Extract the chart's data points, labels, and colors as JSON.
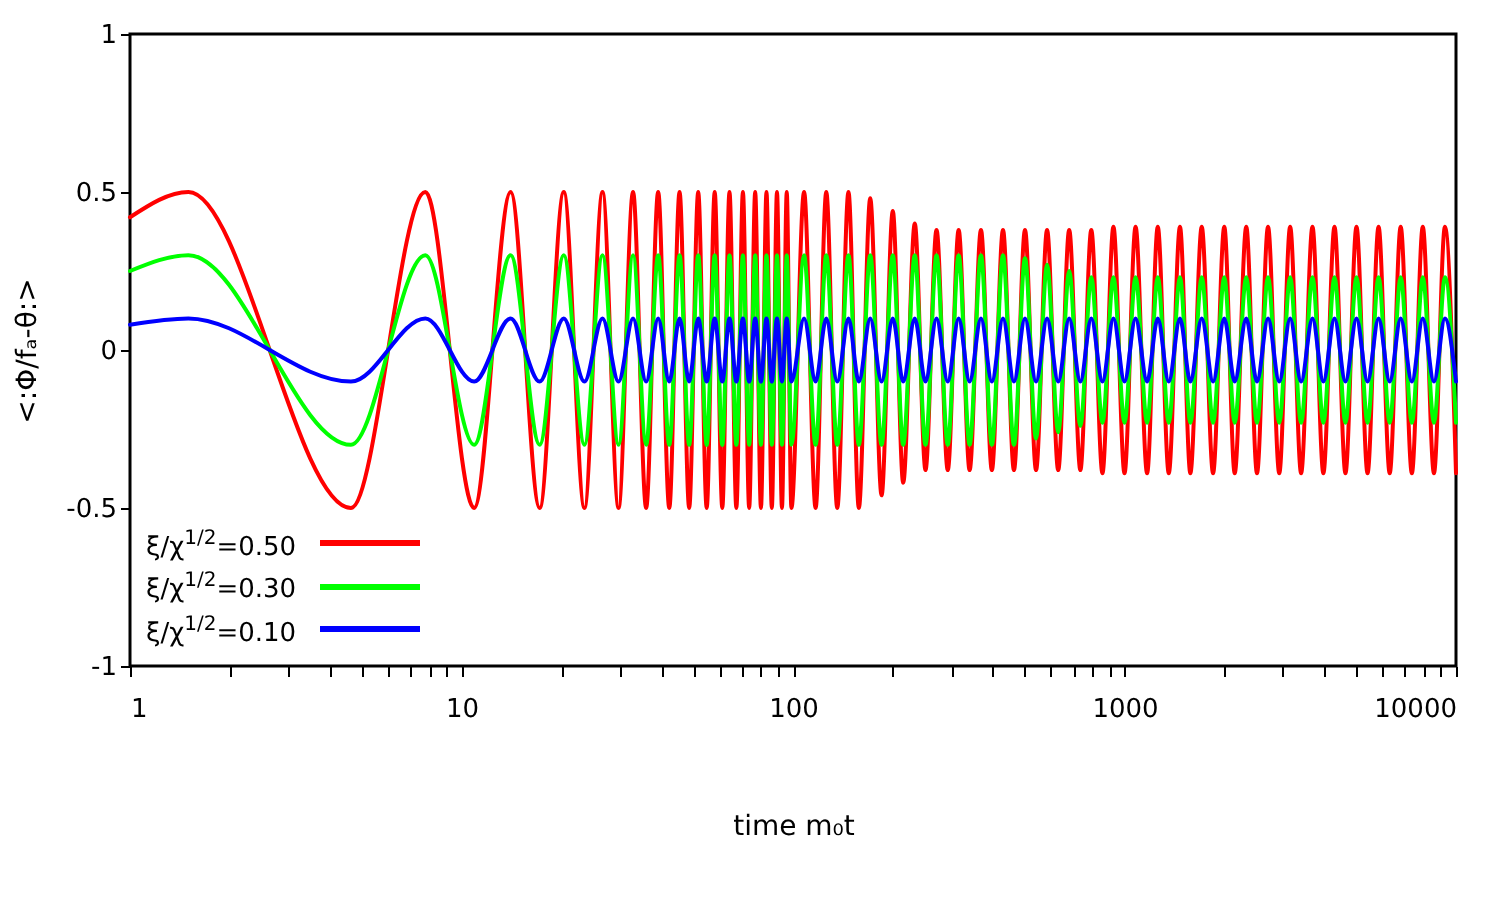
{
  "chart_data": {
    "type": "line",
    "xlabel": "time m₀t",
    "ylabel": "<:Φ/fₐ-θ:>",
    "log": "x",
    "legend": "bottom left",
    "xlim": [
      1,
      10000
    ],
    "ylim": [
      -1,
      1
    ],
    "xticks": [
      1,
      {
        "value": 2,
        "label": null
      },
      {
        "value": 3,
        "label": null
      },
      {
        "value": 4,
        "label": null
      },
      {
        "value": 5,
        "label": null
      },
      {
        "value": 6,
        "label": null
      },
      {
        "value": 7,
        "label": null
      },
      {
        "value": 8,
        "label": null
      },
      {
        "value": 9,
        "label": null
      },
      10,
      {
        "value": 20,
        "label": null
      },
      {
        "value": 30,
        "label": null
      },
      {
        "value": 40,
        "label": null
      },
      {
        "value": 50,
        "label": null
      },
      {
        "value": 60,
        "label": null
      },
      {
        "value": 70,
        "label": null
      },
      {
        "value": 80,
        "label": null
      },
      {
        "value": 90,
        "label": null
      },
      100,
      {
        "value": 200,
        "label": null
      },
      {
        "value": 300,
        "label": null
      },
      {
        "value": 400,
        "label": null
      },
      {
        "value": 500,
        "label": null
      },
      {
        "value": 600,
        "label": null
      },
      {
        "value": 700,
        "label": null
      },
      {
        "value": 800,
        "label": null
      },
      {
        "value": 900,
        "label": null
      },
      1000,
      {
        "value": 2000,
        "label": null
      },
      {
        "value": 3000,
        "label": null
      },
      {
        "value": 4000,
        "label": null
      },
      {
        "value": 5000,
        "label": null
      },
      {
        "value": 6000,
        "label": null
      },
      {
        "value": 7000,
        "label": null
      },
      {
        "value": 8000,
        "label": null
      },
      {
        "value": 9000,
        "label": null
      },
      10000
    ],
    "yticks": [
      -1,
      -0.5,
      0,
      0.5,
      1
    ],
    "x": [
      1,
      1.5,
      4.64,
      7.78,
      10.92,
      14.07,
      17.21,
      20.35,
      23.49,
      26.63,
      29.77,
      32.92,
      36.06,
      39.2,
      42.34,
      45.48,
      48.62,
      51.77,
      54.91,
      58.05,
      61.19,
      64.33,
      67.47,
      70.62,
      73.76,
      76.9,
      80.04,
      83.18,
      86.32,
      89.47,
      92.61,
      95.75,
      98.89,
      108,
      117,
      126,
      136,
      147,
      158,
      171,
      185,
      200,
      215,
      233,
      251,
      271,
      293,
      316,
      341,
      369,
      398,
      430,
      464,
      501,
      541,
      584,
      631,
      681,
      736,
      794,
      858,
      926,
      1000,
      1080,
      1170,
      1260,
      1360,
      1470,
      1580,
      1710,
      1850,
      2000,
      2150,
      2330,
      2510,
      2710,
      2930,
      3160,
      3410,
      3690,
      3980,
      4300,
      4640,
      5010,
      5410,
      5840,
      6310,
      6810,
      7360,
      7940,
      8580,
      9260,
      10000
    ],
    "series": [
      {
        "name": "ξ/χ$^{1/2}$=0.50",
        "color": "#ff0000",
        "values": [
          0.42,
          0.5,
          -0.5,
          0.5,
          -0.5,
          0.5,
          -0.5,
          0.5,
          -0.5,
          0.5,
          -0.5,
          0.5,
          -0.5,
          0.5,
          -0.5,
          0.5,
          -0.5,
          0.5,
          -0.5,
          0.5,
          -0.5,
          0.5,
          -0.5,
          0.5,
          -0.5,
          0.5,
          -0.5,
          0.5,
          -0.5,
          0.5,
          -0.5,
          0.5,
          -0.5,
          0.5,
          -0.5,
          0.5,
          -0.5,
          0.5,
          -0.5,
          0.48,
          -0.46,
          0.44,
          -0.42,
          0.4,
          -0.38,
          0.38,
          -0.38,
          0.38,
          -0.38,
          0.38,
          -0.38,
          0.38,
          -0.38,
          0.38,
          -0.38,
          0.38,
          -0.38,
          0.38,
          -0.38,
          0.38,
          -0.39,
          0.39,
          -0.39,
          0.39,
          -0.39,
          0.39,
          -0.39,
          0.39,
          -0.39,
          0.39,
          -0.39,
          0.39,
          -0.39,
          0.39,
          -0.39,
          0.39,
          -0.39,
          0.39,
          -0.39,
          0.39,
          -0.39,
          0.39,
          -0.39,
          0.39,
          -0.39,
          0.39,
          -0.39,
          0.39,
          -0.39,
          0.39,
          -0.39,
          0.39,
          -0.39
        ]
      },
      {
        "name": "ξ/χ$^{1/2}$=0.30",
        "color": "#00ff00",
        "values": [
          0.25,
          0.3,
          -0.3,
          0.3,
          -0.3,
          0.3,
          -0.3,
          0.3,
          -0.3,
          0.3,
          -0.3,
          0.3,
          -0.3,
          0.3,
          -0.3,
          0.3,
          -0.3,
          0.3,
          -0.3,
          0.3,
          -0.3,
          0.3,
          -0.3,
          0.3,
          -0.3,
          0.3,
          -0.3,
          0.3,
          -0.3,
          0.3,
          -0.3,
          0.3,
          -0.3,
          0.3,
          -0.3,
          0.3,
          -0.3,
          0.3,
          -0.3,
          0.3,
          -0.3,
          0.3,
          -0.3,
          0.3,
          -0.3,
          0.3,
          -0.3,
          0.3,
          -0.3,
          0.3,
          -0.3,
          0.3,
          -0.3,
          0.29,
          -0.28,
          0.27,
          -0.26,
          0.25,
          -0.24,
          0.23,
          -0.23,
          0.23,
          -0.23,
          0.23,
          -0.23,
          0.23,
          -0.23,
          0.23,
          -0.23,
          0.23,
          -0.23,
          0.23,
          -0.23,
          0.23,
          -0.23,
          0.23,
          -0.23,
          0.23,
          -0.23,
          0.23,
          -0.23,
          0.23,
          -0.23,
          0.23,
          -0.23,
          0.23,
          -0.23,
          0.23,
          -0.23,
          0.23,
          -0.23,
          0.23,
          -0.23
        ]
      },
      {
        "name": "ξ/χ$^{1/2}$=0.10",
        "color": "#0000ff",
        "values": [
          0.08,
          0.1,
          -0.1,
          0.1,
          -0.1,
          0.1,
          -0.1,
          0.1,
          -0.1,
          0.1,
          -0.1,
          0.1,
          -0.1,
          0.1,
          -0.1,
          0.1,
          -0.1,
          0.1,
          -0.1,
          0.1,
          -0.1,
          0.1,
          -0.1,
          0.1,
          -0.1,
          0.1,
          -0.1,
          0.1,
          -0.1,
          0.1,
          -0.1,
          0.1,
          -0.1,
          0.1,
          -0.1,
          0.1,
          -0.1,
          0.1,
          -0.1,
          0.1,
          -0.1,
          0.1,
          -0.1,
          0.1,
          -0.1,
          0.1,
          -0.1,
          0.1,
          -0.1,
          0.1,
          -0.1,
          0.1,
          -0.1,
          0.1,
          -0.1,
          0.1,
          -0.1,
          0.1,
          -0.1,
          0.1,
          -0.1,
          0.1,
          -0.1,
          0.1,
          -0.1,
          0.1,
          -0.1,
          0.1,
          -0.1,
          0.1,
          -0.1,
          0.1,
          -0.1,
          0.1,
          -0.1,
          0.1,
          -0.1,
          0.1,
          -0.1,
          0.1,
          -0.1,
          0.1,
          -0.1,
          0.1,
          -0.1,
          0.1,
          -0.1,
          0.1,
          -0.1,
          0.1,
          -0.1,
          0.1,
          -0.1
        ]
      }
    ]
  }
}
